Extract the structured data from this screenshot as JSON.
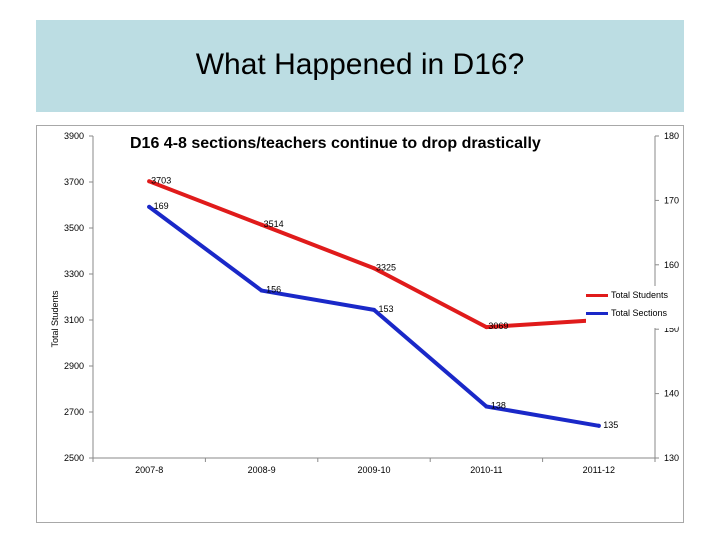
{
  "slide": {
    "title": "What Happened in D16?"
  },
  "colors": {
    "title_band": "#bcdde3",
    "students_line": "#e01b1b",
    "sections_line": "#1a28c8"
  },
  "chart_data": {
    "type": "line",
    "title": "D16 4-8 sections/teachers continue to drop drastically",
    "categories": [
      "2007-8",
      "2008-9",
      "2009-10",
      "2010-11",
      "2011-12"
    ],
    "ylabel": "Total Students",
    "ylim": [
      2500,
      3900
    ],
    "yticks": [
      2500,
      2700,
      2900,
      3100,
      3300,
      3500,
      3700,
      3900
    ],
    "y2lim": [
      130,
      180
    ],
    "y2ticks": [
      130,
      140,
      150,
      160,
      170,
      180
    ],
    "grid": false,
    "legend_position": "right",
    "series": [
      {
        "name": "Total Students",
        "axis": "left",
        "color": "#e01b1b",
        "values": [
          3703,
          3514,
          3325,
          3069,
          3100
        ]
      },
      {
        "name": "Total Sections",
        "axis": "right",
        "color": "#1a28c8",
        "values": [
          169,
          156,
          153,
          138,
          135
        ]
      }
    ]
  }
}
